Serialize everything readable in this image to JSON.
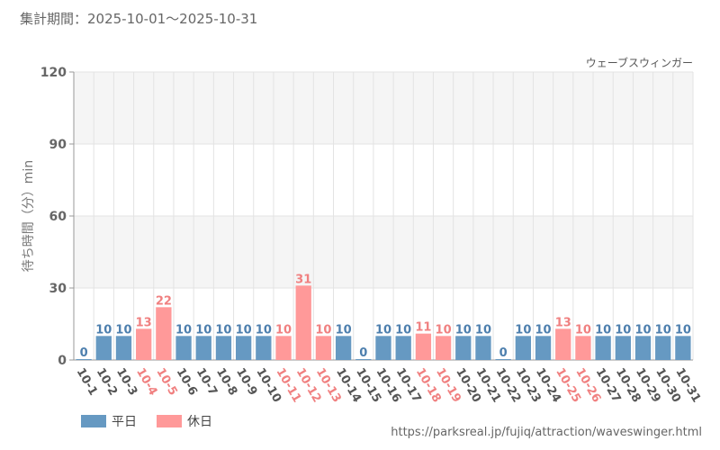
{
  "header": {
    "period": "集計期間：2025-10-01～2025-10-31",
    "url": "https://parksreal.jp/fujiq/attraction/waveswinger.html"
  },
  "colors": {
    "weekday": "#6699c2",
    "holiday": "#ff9999",
    "weekday_text": "#4d7fae",
    "holiday_text": "#f08080",
    "band": "#f5f5f5",
    "grid": "#e3e3e3"
  },
  "legend": {
    "weekday_label": "平日",
    "holiday_label": "休日"
  },
  "chart_data": {
    "type": "bar",
    "title": "ウェーブスウィンガー",
    "xlabel": "",
    "ylabel": "待ち時間（分）min",
    "ylim": [
      0,
      120
    ],
    "yticks": [
      0,
      30,
      60,
      90,
      120
    ],
    "categories": [
      "10-1",
      "10-2",
      "10-3",
      "10-4",
      "10-5",
      "10-6",
      "10-7",
      "10-8",
      "10-9",
      "10-10",
      "10-11",
      "10-12",
      "10-13",
      "10-14",
      "10-15",
      "10-16",
      "10-17",
      "10-18",
      "10-19",
      "10-20",
      "10-21",
      "10-22",
      "10-23",
      "10-24",
      "10-25",
      "10-26",
      "10-27",
      "10-28",
      "10-29",
      "10-30",
      "10-31"
    ],
    "values": [
      0,
      10,
      10,
      13,
      22,
      10,
      10,
      10,
      10,
      10,
      10,
      31,
      10,
      10,
      0,
      10,
      10,
      11,
      10,
      10,
      10,
      0,
      10,
      10,
      13,
      10,
      10,
      10,
      10,
      10,
      10
    ],
    "holiday": [
      false,
      false,
      false,
      true,
      true,
      false,
      false,
      false,
      false,
      false,
      true,
      true,
      true,
      false,
      false,
      false,
      false,
      true,
      true,
      false,
      false,
      false,
      false,
      false,
      true,
      true,
      false,
      false,
      false,
      false,
      false
    ]
  }
}
